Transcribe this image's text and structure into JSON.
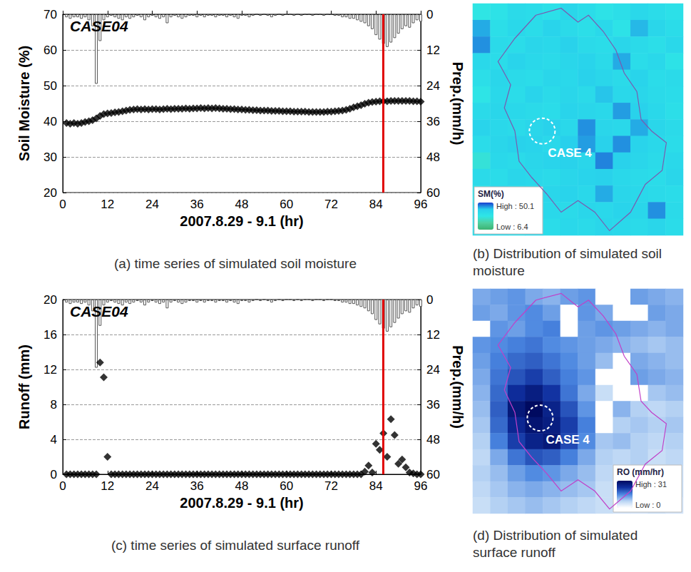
{
  "chart_data": [
    {
      "type": "line",
      "annotation": "CASE04",
      "caption": "(a) time series of simulated soil moisture",
      "x_label": "2007.8.29 - 9.1 (hr)",
      "y_label": "Soil Moisture (%)",
      "y2_label": "Prep.(mm/h)",
      "xlim": [
        0,
        96
      ],
      "xticks": [
        0,
        12,
        24,
        36,
        48,
        60,
        72,
        84,
        96
      ],
      "ylim": [
        20,
        70
      ],
      "yticks": [
        20,
        30,
        40,
        50,
        60,
        70
      ],
      "y2lim": [
        0,
        60
      ],
      "y2ticks": [
        0,
        12,
        24,
        36,
        48,
        60
      ],
      "grid": true,
      "reference_x": 86,
      "x": [
        1,
        2,
        3,
        4,
        5,
        6,
        7,
        8,
        9,
        10,
        11,
        12,
        13,
        14,
        15,
        16,
        17,
        18,
        19,
        20,
        21,
        22,
        23,
        24,
        25,
        26,
        27,
        28,
        29,
        30,
        31,
        32,
        33,
        34,
        35,
        36,
        37,
        38,
        39,
        40,
        41,
        42,
        43,
        44,
        45,
        46,
        47,
        48,
        49,
        50,
        51,
        52,
        53,
        54,
        55,
        56,
        57,
        58,
        59,
        60,
        61,
        62,
        63,
        64,
        65,
        66,
        67,
        68,
        69,
        70,
        71,
        72,
        73,
        74,
        75,
        76,
        77,
        78,
        79,
        80,
        81,
        82,
        83,
        84,
        85,
        86,
        87,
        88,
        89,
        90,
        91,
        92,
        93,
        94,
        95,
        96
      ],
      "series": [
        {
          "type": "bar",
          "axis": "y2",
          "color": "#ffffff",
          "values": [
            1,
            1.5,
            1,
            1,
            1.5,
            1,
            2,
            4,
            23.4,
            9,
            2,
            1,
            0.5,
            1,
            1.5,
            2,
            1,
            1.5,
            1,
            0.5,
            1,
            2,
            1,
            0.5,
            1,
            1.5,
            1,
            3,
            1,
            0.5,
            1,
            1.5,
            1,
            0.5,
            0.5,
            1,
            0.5,
            1,
            0.5,
            0.5,
            1,
            0.5,
            0.5,
            1,
            0.5,
            1,
            1.5,
            0.5,
            0.5,
            1,
            0.5,
            0,
            0.5,
            0,
            0.5,
            1,
            0.5,
            0,
            0.5,
            0,
            0,
            0.5,
            0,
            0.5,
            0,
            0,
            0.5,
            0,
            0,
            0.5,
            0,
            0,
            0.5,
            0.5,
            1,
            1,
            1.5,
            1.5,
            2,
            2.5,
            3,
            4,
            5,
            7,
            8.5,
            10,
            11,
            9.5,
            8,
            6.5,
            5,
            4,
            4.5,
            3,
            2,
            2.5
          ]
        },
        {
          "type": "scatter",
          "marker": "diamond",
          "color": "#000000",
          "values": [
            39.5,
            39.3,
            39.5,
            39.3,
            39.5,
            39.8,
            40,
            40.3,
            40.8,
            41.5,
            42,
            42.2,
            42.3,
            42.5,
            42.6,
            42.8,
            43,
            43.2,
            43.3,
            43.4,
            43.3,
            43.4,
            43.3,
            43.4,
            43.4,
            43.3,
            43.4,
            43.5,
            43.4,
            43.5,
            43.5,
            43.5,
            43.6,
            43.5,
            43.6,
            43.6,
            43.7,
            43.6,
            43.7,
            43.6,
            43.7,
            43.6,
            43.5,
            43.5,
            43.4,
            43.4,
            43.3,
            43.3,
            43.2,
            43.2,
            43.1,
            43.1,
            43.0,
            43.0,
            43.0,
            42.9,
            42.9,
            42.9,
            42.8,
            42.8,
            42.8,
            42.7,
            42.7,
            42.7,
            42.7,
            42.6,
            42.6,
            42.6,
            42.6,
            42.6,
            42.7,
            42.7,
            42.8,
            42.9,
            43.0,
            43.2,
            43.5,
            43.9,
            44.2,
            44.5,
            44.9,
            45.2,
            45.4,
            45.5,
            45.6,
            45.6,
            45.6,
            45.7,
            45.7,
            45.7,
            45.7,
            45.7,
            45.7,
            45.6,
            45.6,
            45.5
          ]
        }
      ]
    },
    {
      "type": "heatmap",
      "caption": "(b) Distribution of simulated soil moisture",
      "annotation": "CASE 4",
      "tick_labels": false,
      "colorbar": {
        "title": "SM(%)",
        "range": [
          6.4,
          50.1
        ],
        "labels": [
          "High : 50.1",
          "Low : 6.4"
        ]
      },
      "cells": [
        [
          28,
          30,
          34,
          33,
          31,
          36,
          33,
          30,
          32,
          35,
          33,
          31
        ],
        [
          42,
          32,
          35,
          33,
          37,
          34,
          32,
          35,
          30,
          41,
          36,
          33
        ],
        [
          44,
          34,
          33,
          36,
          35,
          38,
          34,
          33,
          36,
          34,
          32,
          35
        ],
        [
          35,
          33,
          37,
          35,
          34,
          36,
          37,
          34,
          42,
          33,
          35,
          30
        ],
        [
          32,
          36,
          34,
          33,
          36,
          35,
          38,
          36,
          34,
          37,
          33,
          34
        ],
        [
          29,
          35,
          33,
          37,
          34,
          36,
          34,
          40,
          35,
          36,
          34,
          33
        ],
        [
          34,
          36,
          35,
          34,
          33,
          37,
          36,
          35,
          43,
          38,
          35,
          32
        ],
        [
          37,
          35,
          34,
          36,
          38,
          35,
          44,
          36,
          35,
          42,
          36,
          34
        ],
        [
          33,
          36,
          38,
          37,
          35,
          39,
          43,
          38,
          44,
          37,
          35,
          33
        ],
        [
          26,
          35,
          34,
          36,
          37,
          38,
          36,
          45,
          38,
          36,
          34,
          35
        ],
        [
          34,
          33,
          36,
          35,
          34,
          36,
          37,
          38,
          35,
          34,
          33,
          36
        ],
        [
          31,
          36,
          34,
          35,
          36,
          37,
          35,
          42,
          36,
          35,
          34,
          33
        ],
        [
          35,
          33,
          37,
          36,
          35,
          34,
          36,
          35,
          37,
          36,
          44,
          34
        ],
        [
          33,
          35,
          34,
          36,
          33,
          35,
          34,
          36,
          35,
          34,
          36,
          33
        ]
      ]
    },
    {
      "type": "line",
      "annotation": "CASE04",
      "caption": "(c) time series of simulated surface runoff",
      "x_label": "2007.8.29 - 9.1 (hr)",
      "y_label": "Runoff (mm)",
      "y2_label": "Prep.(mm/h)",
      "xlim": [
        0,
        96
      ],
      "xticks": [
        0,
        12,
        24,
        36,
        48,
        60,
        72,
        84,
        96
      ],
      "ylim": [
        0,
        20
      ],
      "yticks": [
        0,
        4,
        8,
        12,
        16,
        20
      ],
      "y2lim": [
        0,
        60
      ],
      "y2ticks": [
        0,
        12,
        24,
        36,
        48,
        60
      ],
      "grid": true,
      "reference_x": 86,
      "x": [
        1,
        2,
        3,
        4,
        5,
        6,
        7,
        8,
        9,
        10,
        11,
        12,
        13,
        14,
        15,
        16,
        17,
        18,
        19,
        20,
        21,
        22,
        23,
        24,
        25,
        26,
        27,
        28,
        29,
        30,
        31,
        32,
        33,
        34,
        35,
        36,
        37,
        38,
        39,
        40,
        41,
        42,
        43,
        44,
        45,
        46,
        47,
        48,
        49,
        50,
        51,
        52,
        53,
        54,
        55,
        56,
        57,
        58,
        59,
        60,
        61,
        62,
        63,
        64,
        65,
        66,
        67,
        68,
        69,
        70,
        71,
        72,
        73,
        74,
        75,
        76,
        77,
        78,
        79,
        80,
        81,
        82,
        83,
        84,
        85,
        86,
        87,
        88,
        89,
        90,
        91,
        92,
        93,
        94,
        95,
        96
      ],
      "series": [
        {
          "type": "bar",
          "axis": "y2",
          "color": "#ffffff",
          "values": [
            1,
            1.5,
            1,
            1,
            1.5,
            1,
            2,
            4,
            23.4,
            9,
            2,
            1,
            0.5,
            1,
            1.5,
            2,
            1,
            1.5,
            1,
            0.5,
            1,
            2,
            1,
            0.5,
            1,
            1.5,
            1,
            3,
            1,
            0.5,
            1,
            1.5,
            1,
            0.5,
            0.5,
            1,
            0.5,
            1,
            0.5,
            0.5,
            1,
            0.5,
            0.5,
            1,
            0.5,
            1,
            1.5,
            0.5,
            0.5,
            1,
            0.5,
            0,
            0.5,
            0,
            0.5,
            1,
            0.5,
            0,
            0.5,
            0,
            0,
            0.5,
            0,
            0.5,
            0,
            0,
            0.5,
            0,
            0,
            0.5,
            0,
            0,
            0.5,
            0.5,
            1,
            1,
            1.5,
            1.5,
            2,
            2.5,
            3,
            4,
            5,
            7,
            8.5,
            10,
            11,
            9.5,
            8,
            6.5,
            5,
            4,
            4.5,
            3,
            2,
            2.5
          ]
        },
        {
          "type": "scatter",
          "marker": "diamond",
          "color": "#000000",
          "values": [
            0,
            0,
            0,
            0,
            0,
            0,
            0,
            0,
            0,
            12.8,
            11.1,
            2,
            0,
            0,
            0,
            0,
            0,
            0,
            0,
            0,
            0,
            0,
            0,
            0,
            0,
            0,
            0,
            0,
            0,
            0,
            0,
            0,
            0,
            0,
            0,
            0,
            0,
            0,
            0,
            0,
            0,
            0,
            0,
            0,
            0,
            0,
            0,
            0,
            0,
            0,
            0,
            0,
            0,
            0,
            0,
            0,
            0,
            0,
            0,
            0,
            0,
            0,
            0,
            0,
            0,
            0,
            0,
            0,
            0,
            0,
            0,
            0,
            0,
            0,
            0,
            0,
            0,
            0,
            0,
            0,
            0.3,
            1,
            0.2,
            3.5,
            2.8,
            4.7,
            2,
            6.3,
            4.5,
            1.2,
            1.7,
            0.8,
            0.2,
            0.1,
            0,
            0
          ]
        }
      ]
    },
    {
      "type": "heatmap",
      "caption": "(d) Distribution of simulated surface runoff",
      "annotation": "CASE 4",
      "tick_labels": false,
      "colorbar": {
        "title": "RO (mm/hr)",
        "range": [
          0,
          31
        ],
        "labels": [
          "High : 31",
          "Low : 0"
        ]
      },
      "cells": [
        [
          12,
          13,
          14,
          12,
          11,
          13,
          14,
          0,
          0,
          13,
          12,
          11
        ],
        [
          13,
          12,
          14,
          15,
          13,
          0,
          14,
          12,
          0,
          0,
          13,
          12
        ],
        [
          0,
          14,
          13,
          15,
          16,
          0,
          13,
          14,
          13,
          12,
          11,
          12
        ],
        [
          14,
          15,
          16,
          17,
          15,
          14,
          13,
          12,
          11,
          10,
          9,
          10
        ],
        [
          13,
          16,
          18,
          19,
          17,
          15,
          13,
          10,
          0,
          12,
          11,
          10
        ],
        [
          12,
          17,
          20,
          22,
          19,
          16,
          14,
          0,
          0,
          13,
          12,
          11
        ],
        [
          11,
          18,
          24,
          27,
          23,
          17,
          12,
          6,
          0,
          0,
          9,
          10
        ],
        [
          10,
          19,
          28,
          31,
          26,
          20,
          14,
          0,
          11,
          8,
          7,
          8
        ],
        [
          9,
          18,
          25,
          29,
          27,
          22,
          16,
          0,
          8,
          9,
          8,
          9
        ],
        [
          8,
          16,
          22,
          26,
          28,
          21,
          15,
          9,
          10,
          8,
          7,
          8
        ],
        [
          7,
          12,
          17,
          20,
          19,
          16,
          12,
          8,
          7,
          8,
          6,
          7
        ],
        [
          8,
          10,
          13,
          15,
          14,
          12,
          10,
          7,
          6,
          7,
          6,
          6
        ],
        [
          7,
          9,
          11,
          12,
          11,
          10,
          9,
          6,
          5,
          6,
          5,
          6
        ],
        [
          6,
          8,
          9,
          10,
          9,
          8,
          7,
          6,
          5,
          5,
          6,
          5
        ]
      ]
    }
  ]
}
